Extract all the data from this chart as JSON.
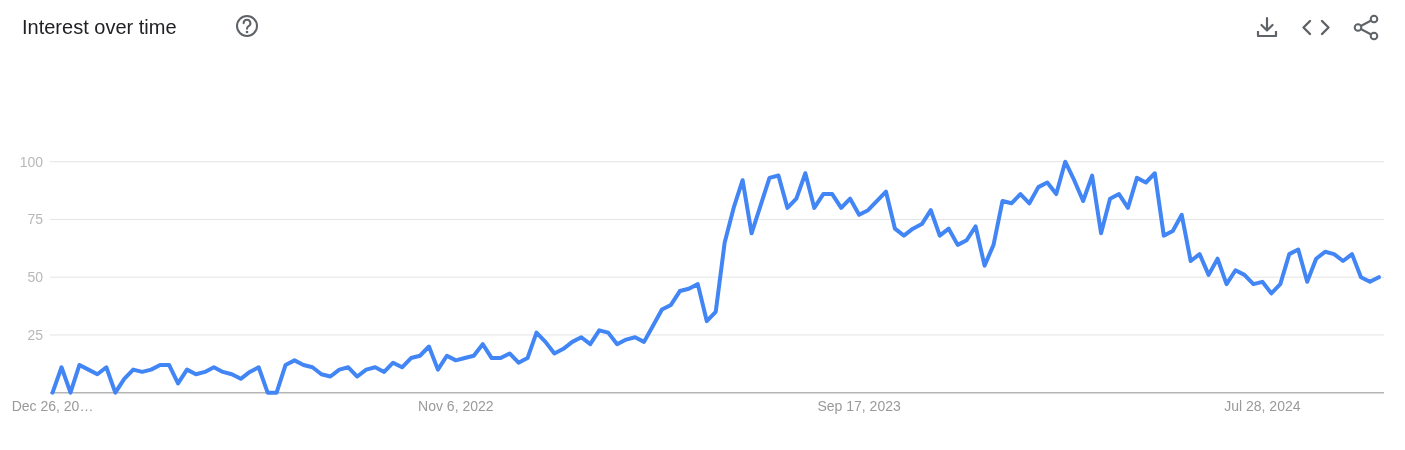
{
  "chart_data": {
    "type": "line",
    "title": "Interest over time",
    "x": [
      "2021-12-26",
      "2022-01-02",
      "2022-01-09",
      "2022-01-16",
      "2022-01-23",
      "2022-01-30",
      "2022-02-06",
      "2022-02-13",
      "2022-02-20",
      "2022-02-27",
      "2022-03-06",
      "2022-03-13",
      "2022-03-20",
      "2022-03-27",
      "2022-04-03",
      "2022-04-10",
      "2022-04-17",
      "2022-04-24",
      "2022-05-01",
      "2022-05-08",
      "2022-05-15",
      "2022-05-22",
      "2022-05-29",
      "2022-06-05",
      "2022-06-12",
      "2022-06-19",
      "2022-06-26",
      "2022-07-03",
      "2022-07-10",
      "2022-07-17",
      "2022-07-24",
      "2022-07-31",
      "2022-08-07",
      "2022-08-14",
      "2022-08-21",
      "2022-08-28",
      "2022-09-04",
      "2022-09-11",
      "2022-09-18",
      "2022-09-25",
      "2022-10-02",
      "2022-10-09",
      "2022-10-16",
      "2022-10-23",
      "2022-10-30",
      "2022-11-06",
      "2022-11-13",
      "2022-11-20",
      "2022-11-27",
      "2022-12-04",
      "2022-12-11",
      "2022-12-18",
      "2022-12-25",
      "2023-01-01",
      "2023-01-08",
      "2023-01-15",
      "2023-01-22",
      "2023-01-29",
      "2023-02-05",
      "2023-02-12",
      "2023-02-19",
      "2023-02-26",
      "2023-03-05",
      "2023-03-12",
      "2023-03-19",
      "2023-03-26",
      "2023-04-02",
      "2023-04-09",
      "2023-04-16",
      "2023-04-23",
      "2023-04-30",
      "2023-05-07",
      "2023-05-14",
      "2023-05-21",
      "2023-05-28",
      "2023-06-04",
      "2023-06-11",
      "2023-06-18",
      "2023-06-25",
      "2023-07-02",
      "2023-07-09",
      "2023-07-16",
      "2023-07-23",
      "2023-07-30",
      "2023-08-06",
      "2023-08-13",
      "2023-08-20",
      "2023-08-27",
      "2023-09-03",
      "2023-09-10",
      "2023-09-17",
      "2023-09-24",
      "2023-10-01",
      "2023-10-08",
      "2023-10-15",
      "2023-10-22",
      "2023-10-29",
      "2023-11-05",
      "2023-11-12",
      "2023-11-19",
      "2023-11-26",
      "2023-12-03",
      "2023-12-10",
      "2023-12-17",
      "2023-12-24",
      "2023-12-31",
      "2024-01-07",
      "2024-01-14",
      "2024-01-21",
      "2024-01-28",
      "2024-02-04",
      "2024-02-11",
      "2024-02-18",
      "2024-02-25",
      "2024-03-03",
      "2024-03-10",
      "2024-03-17",
      "2024-03-24",
      "2024-03-31",
      "2024-04-07",
      "2024-04-14",
      "2024-04-21",
      "2024-04-28",
      "2024-05-05",
      "2024-05-12",
      "2024-05-19",
      "2024-05-26",
      "2024-06-02",
      "2024-06-09",
      "2024-06-16",
      "2024-06-23",
      "2024-06-30",
      "2024-07-07",
      "2024-07-14",
      "2024-07-21",
      "2024-07-28",
      "2024-08-04",
      "2024-08-11",
      "2024-08-18",
      "2024-08-25",
      "2024-09-01",
      "2024-09-08",
      "2024-09-15",
      "2024-09-22",
      "2024-09-29",
      "2024-10-06",
      "2024-10-13",
      "2024-10-20",
      "2024-10-27"
    ],
    "values": [
      0,
      11,
      0,
      12,
      10,
      8,
      11,
      0,
      6,
      10,
      9,
      10,
      12,
      12,
      4,
      10,
      8,
      9,
      11,
      9,
      8,
      6,
      9,
      11,
      0,
      0,
      12,
      14,
      12,
      11,
      8,
      7,
      10,
      11,
      7,
      10,
      11,
      9,
      13,
      11,
      15,
      16,
      20,
      10,
      16,
      14,
      15,
      16,
      21,
      15,
      15,
      17,
      13,
      15,
      26,
      22,
      17,
      19,
      22,
      24,
      21,
      27,
      26,
      21,
      23,
      24,
      22,
      29,
      36,
      38,
      44,
      45,
      47,
      31,
      35,
      65,
      80,
      92,
      69,
      81,
      93,
      94,
      80,
      84,
      95,
      80,
      86,
      86,
      80,
      84,
      77,
      79,
      83,
      87,
      71,
      68,
      71,
      73,
      79,
      68,
      71,
      64,
      66,
      72,
      55,
      64,
      83,
      82,
      86,
      82,
      89,
      91,
      86,
      100,
      92,
      83,
      94,
      69,
      84,
      86,
      80,
      93,
      91,
      95,
      68,
      70,
      77,
      57,
      60,
      51,
      58,
      47,
      53,
      51,
      47,
      48,
      43,
      47,
      60,
      62,
      48,
      58,
      61,
      60,
      57,
      60,
      50,
      48,
      50
    ],
    "color": "#4285f4",
    "xlim": [
      "2021-12-24",
      "2024-10-31"
    ],
    "xticks": [
      {
        "value": "2021-12-26",
        "label": "Dec 26, 20…"
      },
      {
        "value": "2022-11-06",
        "label": "Nov 6, 2022"
      },
      {
        "value": "2023-09-17",
        "label": "Sep 17, 2023"
      },
      {
        "value": "2024-07-28",
        "label": "Jul 28, 2024"
      }
    ],
    "ylim": [
      0,
      100
    ],
    "yticks": [
      25,
      50,
      75,
      100
    ],
    "grid": "y"
  }
}
